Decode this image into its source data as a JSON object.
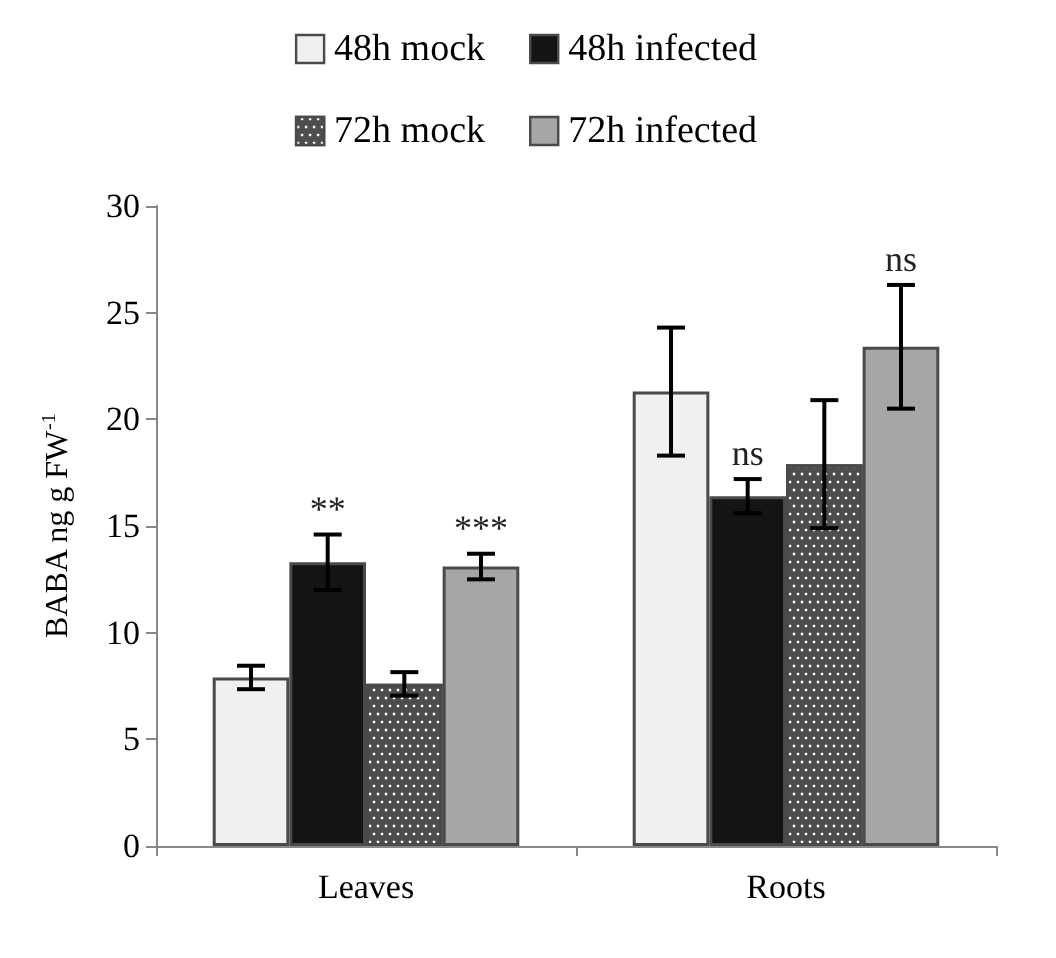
{
  "chart_data": {
    "type": "bar",
    "ylabel": "BABA ng g FW$^{-1}$",
    "categories": [
      "Leaves",
      "Roots"
    ],
    "series": [
      {
        "name": "48h mock",
        "color": "#f0f0f0",
        "values": [
          7.9,
          21.3
        ],
        "errors": [
          0.55,
          3.0
        ]
      },
      {
        "name": "48h infected",
        "color": "#141414",
        "values": [
          13.3,
          16.4
        ],
        "errors": [
          1.3,
          0.8
        ],
        "value_labels": [
          "**",
          "ns"
        ]
      },
      {
        "name": "72h mock",
        "color": "#4d4d4d",
        "values": [
          7.6,
          17.9
        ],
        "errors": [
          0.55,
          3.0
        ]
      },
      {
        "name": "72h infected",
        "color": "#a6a6a6",
        "values": [
          13.1,
          23.4
        ],
        "errors": [
          0.6,
          2.9
        ],
        "value_labels": [
          "***",
          "ns"
        ]
      }
    ],
    "ylim": [
      0,
      30
    ],
    "yticks": [
      0,
      5,
      10,
      15,
      20,
      25,
      30
    ],
    "grid": false,
    "legend": "top"
  }
}
